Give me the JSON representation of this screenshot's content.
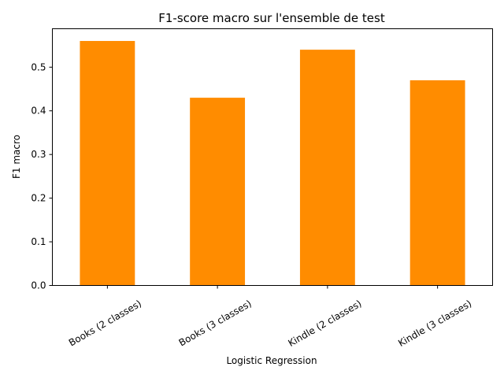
{
  "chart_data": {
    "type": "bar",
    "title": "F1-score macro sur l'ensemble de test",
    "xlabel": "Logistic Regression",
    "ylabel": "F1 macro",
    "categories": [
      "Books (2 classes)",
      "Books (3 classes)",
      "Kindle (2 classes)",
      "Kindle (3 classes)"
    ],
    "values": [
      0.56,
      0.43,
      0.54,
      0.47
    ],
    "ylim": [
      0,
      0.588
    ],
    "yticks": [
      "0.0",
      "0.1",
      "0.2",
      "0.3",
      "0.4",
      "0.5"
    ],
    "bar_color": "#ff8c00",
    "grid": false,
    "legend": "none"
  }
}
